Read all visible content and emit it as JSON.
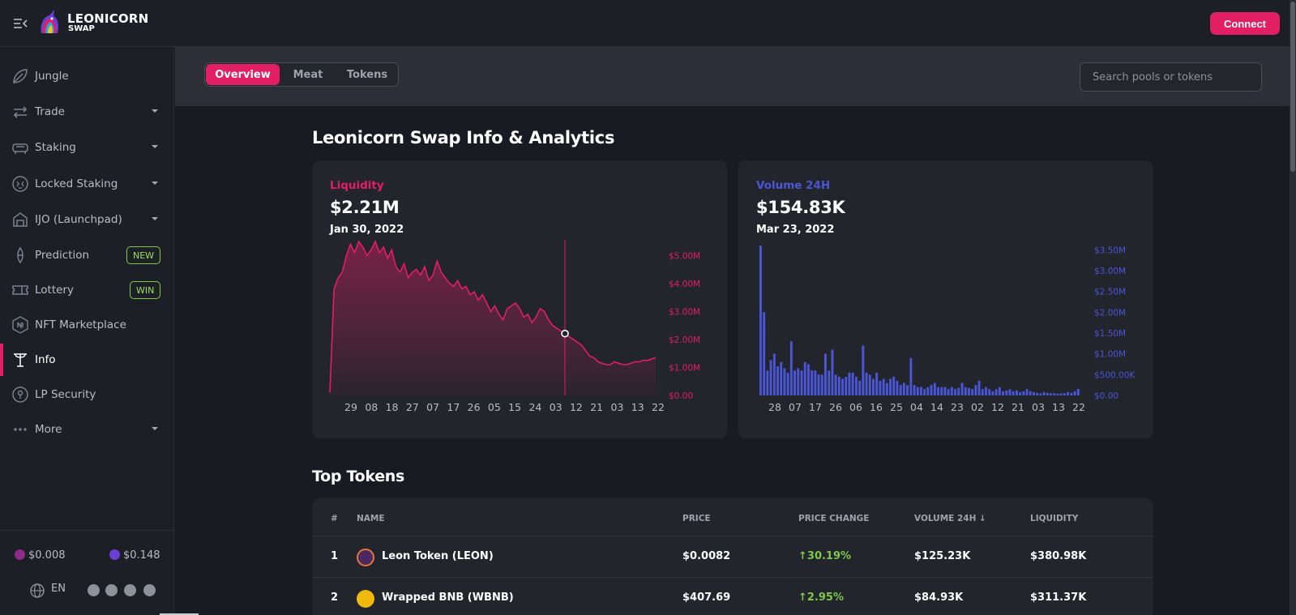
{
  "app": {
    "brand_line1": "LEONICORN",
    "brand_line2": "SWAP",
    "connect_label": "Connect",
    "accent": "#e11f62"
  },
  "sidebar": {
    "items": [
      {
        "label": "Jungle",
        "icon": "jungle-icon"
      },
      {
        "label": "Trade",
        "icon": "trade-arrows-icon",
        "caret": true
      },
      {
        "label": "Staking",
        "icon": "staking-icon",
        "caret": true
      },
      {
        "label": "Locked Staking",
        "icon": "locked-staking-icon",
        "caret": true
      },
      {
        "label": "IJO (Launchpad)",
        "icon": "launchpad-icon",
        "caret": true
      },
      {
        "label": "Prediction",
        "icon": "prediction-icon",
        "badge": "NEW"
      },
      {
        "label": "Lottery",
        "icon": "lottery-ticket-icon",
        "badge": "WIN"
      },
      {
        "label": "NFT Marketplace",
        "icon": "nft-icon"
      },
      {
        "label": "Info",
        "icon": "info-icon",
        "active": true
      },
      {
        "label": "LP Security",
        "icon": "lp-security-icon"
      },
      {
        "label": "More",
        "icon": "more-dots-icon",
        "caret": true
      }
    ],
    "price_leon": "$0.008",
    "price_leos": "$0.148",
    "language": "EN"
  },
  "subnav": {
    "tabs": [
      {
        "label": "Overview",
        "active": true
      },
      {
        "label": "Meat"
      },
      {
        "label": "Tokens"
      }
    ],
    "search_placeholder": "Search pools or tokens"
  },
  "main": {
    "title": "Leonicorn Swap Info & Analytics",
    "top_tokens_title": "Top Tokens"
  },
  "chart_data": [
    {
      "type": "area",
      "title": "Liquidity",
      "value_label": "$2.21M",
      "date_label": "Jan 30, 2022",
      "color": "#e11f62",
      "x_ticks": [
        "29",
        "08",
        "18",
        "27",
        "07",
        "17",
        "26",
        "05",
        "15",
        "24",
        "03",
        "12",
        "21",
        "03",
        "13",
        "22"
      ],
      "y_ticks": [
        "$0.00",
        "$1.00M",
        "$2.00M",
        "$3.00M",
        "$4.00M",
        "$5.00M"
      ],
      "ylim": [
        0,
        5.5
      ],
      "values": [
        0.1,
        3.8,
        4.2,
        4.4,
        5.0,
        5.4,
        5.1,
        5.5,
        5.3,
        5.0,
        5.2,
        5.5,
        5.1,
        5.3,
        4.9,
        5.2,
        4.6,
        4.4,
        4.7,
        4.2,
        4.4,
        4.5,
        4.3,
        4.6,
        4.1,
        4.3,
        4.8,
        4.4,
        4.2,
        4.0,
        3.9,
        4.1,
        3.8,
        3.9,
        3.6,
        3.7,
        3.4,
        3.6,
        3.3,
        3.0,
        3.2,
        2.9,
        2.7,
        3.1,
        3.2,
        3.3,
        3.1,
        2.8,
        2.9,
        2.6,
        2.8,
        3.1,
        3.0,
        2.7,
        2.5,
        2.4,
        2.3,
        2.21,
        2.1,
        2.0,
        1.9,
        1.8,
        1.6,
        1.4,
        1.35,
        1.2,
        1.15,
        1.1,
        1.1,
        1.2,
        1.15,
        1.1,
        1.1,
        1.15,
        1.2,
        1.2,
        1.25,
        1.25,
        1.3,
        1.35
      ],
      "highlight_index": 57
    },
    {
      "type": "bar",
      "title": "Volume 24H",
      "value_label": "$154.83K",
      "date_label": "Mar 23, 2022",
      "color": "#4a56d6",
      "x_ticks": [
        "28",
        "07",
        "17",
        "26",
        "06",
        "16",
        "25",
        "04",
        "14",
        "23",
        "02",
        "12",
        "21",
        "03",
        "13",
        "22"
      ],
      "y_ticks": [
        "$0.00",
        "$500.00K",
        "$1.00M",
        "$1.50M",
        "$2.00M",
        "$2.50M",
        "$3.00M",
        "$3.50M"
      ],
      "ylim": [
        0,
        3.7
      ],
      "values": [
        3.6,
        2.0,
        0.6,
        0.85,
        1.0,
        0.7,
        0.8,
        0.65,
        0.55,
        1.3,
        0.6,
        0.65,
        0.6,
        0.8,
        0.75,
        0.6,
        0.6,
        0.5,
        0.5,
        1.0,
        0.6,
        1.1,
        0.5,
        0.45,
        0.4,
        0.45,
        0.55,
        0.55,
        0.45,
        0.35,
        1.2,
        0.55,
        0.5,
        0.4,
        0.55,
        0.35,
        0.4,
        0.3,
        0.4,
        0.45,
        0.35,
        0.25,
        0.3,
        0.25,
        0.9,
        0.25,
        0.2,
        0.2,
        0.15,
        0.2,
        0.25,
        0.3,
        0.2,
        0.2,
        0.2,
        0.15,
        0.2,
        0.15,
        0.18,
        0.3,
        0.2,
        0.18,
        0.15,
        0.25,
        0.35,
        0.15,
        0.2,
        0.15,
        0.1,
        0.15,
        0.2,
        0.1,
        0.12,
        0.15,
        0.1,
        0.12,
        0.08,
        0.1,
        0.15,
        0.1,
        0.08,
        0.06,
        0.05,
        0.08,
        0.06,
        0.05,
        0.05,
        0.04,
        0.05,
        0.05,
        0.08,
        0.06,
        0.1,
        0.155
      ]
    }
  ],
  "table": {
    "headers": [
      "#",
      "NAME",
      "PRICE",
      "PRICE CHANGE",
      "VOLUME 24H ↓",
      "LIQUIDITY"
    ],
    "rows": [
      {
        "rank": "1",
        "name": "Leon Token  (LEON)",
        "price": "$0.0082",
        "change": "↑30.19%",
        "volume": "$125.23K",
        "liquidity": "$380.98K"
      },
      {
        "rank": "2",
        "name": "Wrapped BNB  (WBNB)",
        "price": "$407.69",
        "change": "↑2.95%",
        "volume": "$84.93K",
        "liquidity": "$311.37K"
      }
    ]
  }
}
